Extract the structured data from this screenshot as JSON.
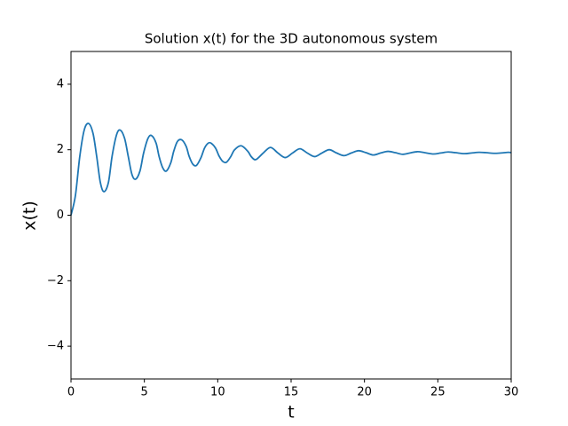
{
  "chart_data": {
    "type": "line",
    "title": "Solution x(t) for the 3D autonomous system",
    "xlabel": "t",
    "ylabel": "x(t)",
    "color": "#1f77b4",
    "x": [
      0,
      0.3,
      0.6,
      0.9,
      1.2,
      1.5,
      1.75,
      2.0,
      2.25,
      2.55,
      2.8,
      3.1,
      3.35,
      3.65,
      3.9,
      4.15,
      4.4,
      4.7,
      4.95,
      5.25,
      5.5,
      5.8,
      6.0,
      6.25,
      6.5,
      6.8,
      7.0,
      7.25,
      7.55,
      7.85,
      8.05,
      8.3,
      8.55,
      8.85,
      9.1,
      9.35,
      9.55,
      9.85,
      10.1,
      10.35,
      10.6,
      10.9,
      11.15,
      11.6,
      12.05,
      12.3,
      12.6,
      13.1,
      13.6,
      14.1,
      14.6,
      15.1,
      15.6,
      16.1,
      16.6,
      17.1,
      17.6,
      18.1,
      18.6,
      19.1,
      19.6,
      20.1,
      20.6,
      21.1,
      21.6,
      22.1,
      22.6,
      23.1,
      23.6,
      24.1,
      24.7,
      25.2,
      25.7,
      26.2,
      26.8,
      27.3,
      27.8,
      28.3,
      28.8,
      29.3,
      29.8,
      30
    ],
    "values": [
      0,
      0.6,
      1.8,
      2.6,
      2.8,
      2.5,
      1.8,
      1.0,
      0.72,
      1.0,
      1.8,
      2.45,
      2.6,
      2.35,
      1.8,
      1.25,
      1.1,
      1.35,
      1.9,
      2.35,
      2.43,
      2.2,
      1.8,
      1.45,
      1.35,
      1.6,
      1.95,
      2.25,
      2.3,
      2.1,
      1.8,
      1.56,
      1.52,
      1.75,
      2.05,
      2.2,
      2.2,
      2.05,
      1.8,
      1.64,
      1.62,
      1.8,
      2.0,
      2.12,
      1.95,
      1.78,
      1.7,
      1.9,
      2.07,
      1.9,
      1.76,
      1.9,
      2.03,
      1.9,
      1.79,
      1.9,
      2.0,
      1.9,
      1.82,
      1.9,
      1.97,
      1.91,
      1.84,
      1.9,
      1.95,
      1.91,
      1.86,
      1.9,
      1.94,
      1.91,
      1.87,
      1.9,
      1.93,
      1.91,
      1.88,
      1.9,
      1.92,
      1.91,
      1.89,
      1.9,
      1.92,
      1.91
    ],
    "xlim": [
      0,
      30
    ],
    "xticks": [
      0,
      5,
      10,
      15,
      20,
      25,
      30
    ],
    "ylim": [
      -5,
      5
    ],
    "yticks": [
      {
        "value": -4,
        "label": "−4"
      },
      {
        "value": -2,
        "label": "−2"
      },
      0,
      2,
      4
    ]
  }
}
